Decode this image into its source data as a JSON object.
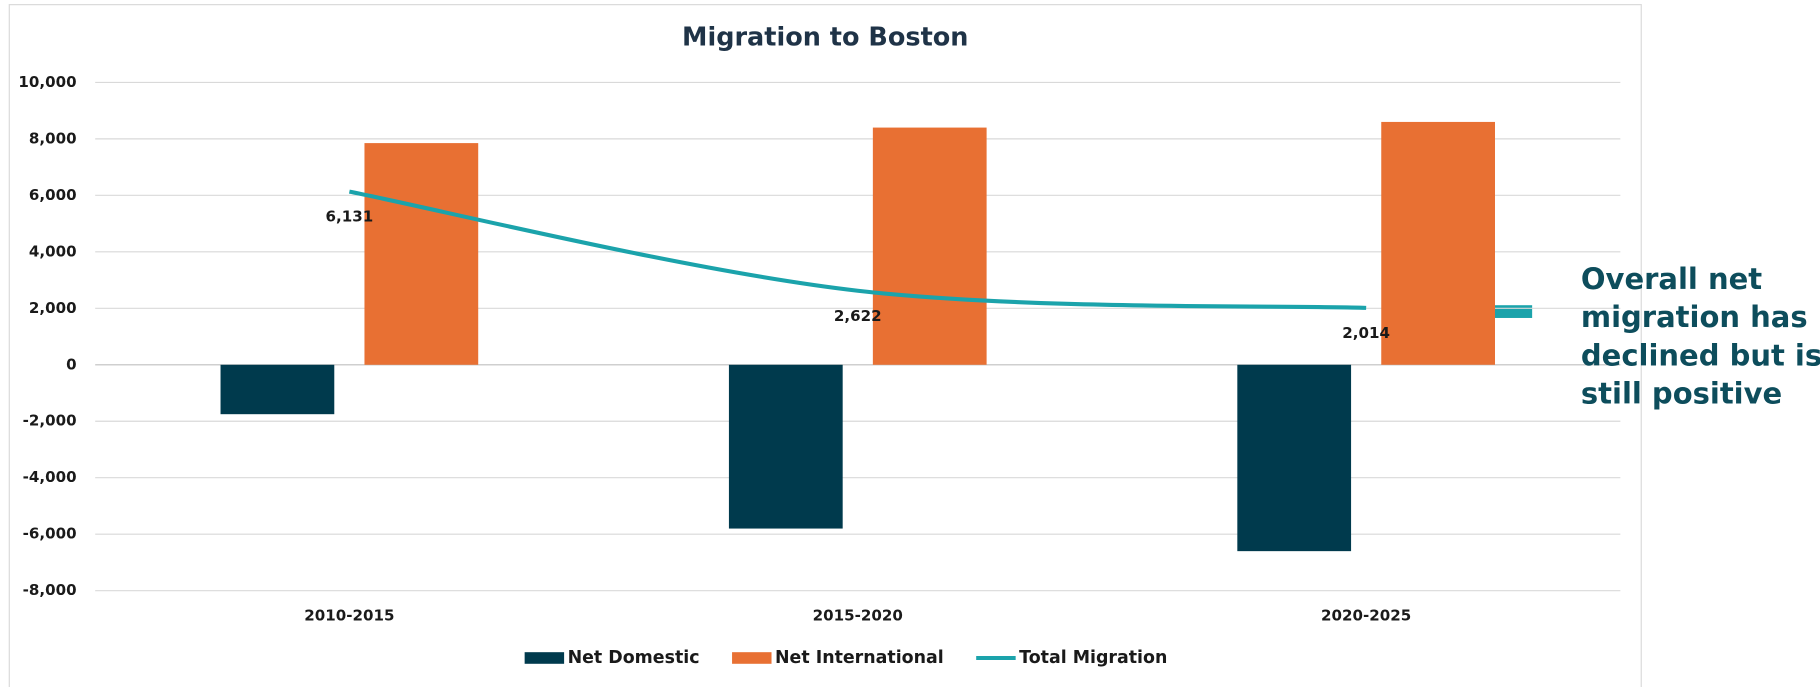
{
  "chart_data": {
    "type": "bar_line",
    "title": "Migration to Boston",
    "categories": [
      "2010-2015",
      "2015-2020",
      "2020-2025"
    ],
    "series": [
      {
        "name": "Net Domestic",
        "color": "#003a4d",
        "type": "bar",
        "values": [
          -1750,
          -5800,
          -6600
        ]
      },
      {
        "name": "Net International",
        "color": "#e87033",
        "type": "bar",
        "values": [
          7850,
          8400,
          8600
        ]
      },
      {
        "name": "Total Migration",
        "color": "#1ba3ab",
        "type": "line",
        "values": [
          6131,
          2622,
          2014
        ],
        "value_labels": [
          "6,131",
          "2,622",
          "2,014"
        ]
      }
    ],
    "ylim": [
      -8000,
      10000
    ],
    "yticks": [
      {
        "value": -8000,
        "label": "-8,000"
      },
      {
        "value": -6000,
        "label": "-6,000"
      },
      {
        "value": -4000,
        "label": "-4,000"
      },
      {
        "value": -2000,
        "label": "-2,000"
      },
      0,
      {
        "value": 2000,
        "label": "2,000"
      },
      {
        "value": 4000,
        "label": "4,000"
      },
      {
        "value": 6000,
        "label": "6,000"
      },
      {
        "value": 8000,
        "label": "8,000"
      },
      {
        "value": 10000,
        "label": "10,000"
      }
    ],
    "grid": true,
    "legend": "bottom",
    "annotation": [
      "Overall net",
      "migration has",
      "declined but is",
      "still positive"
    ]
  }
}
